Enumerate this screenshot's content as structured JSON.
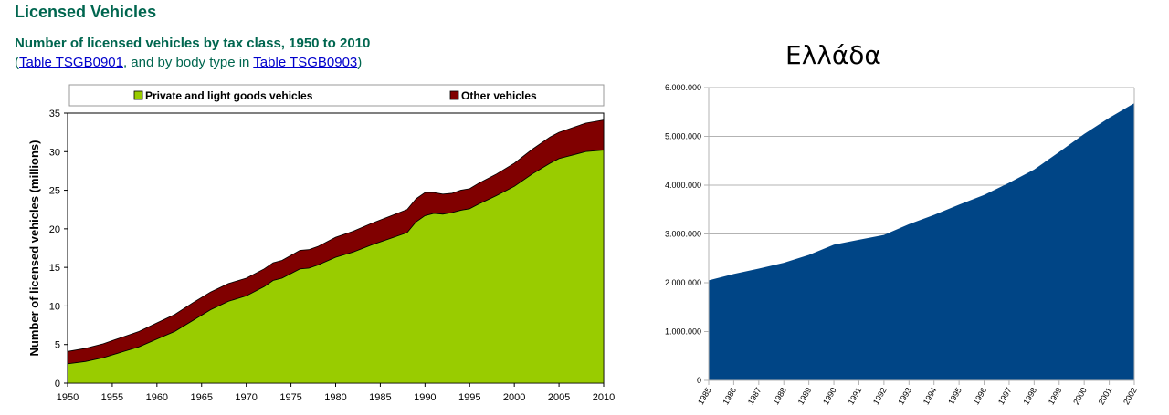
{
  "header": {
    "title": "Licensed Vehicles",
    "subtitle": "Number of licensed vehicles by tax class, 1950 to 2010",
    "line_open": "(",
    "link1": "Table TSGB0901",
    "line_mid": ", and by body type in ",
    "link2": "Table TSGB0903",
    "line_close": ")"
  },
  "chart_data": [
    {
      "type": "area",
      "stacked": true,
      "title": "Number of licensed vehicles by tax class, 1950 to 2010",
      "xlabel": "",
      "ylabel": "Number of licensed vehicles (millions)",
      "xlim": [
        1950,
        2010
      ],
      "ylim": [
        0,
        35
      ],
      "yticks": [
        0,
        5,
        10,
        15,
        20,
        25,
        30,
        35
      ],
      "xticks": [
        1950,
        1955,
        1960,
        1965,
        1970,
        1975,
        1980,
        1985,
        1990,
        1995,
        2000,
        2005,
        2010
      ],
      "legend_position": "top",
      "x": [
        1950,
        1952,
        1954,
        1956,
        1958,
        1960,
        1962,
        1964,
        1966,
        1968,
        1970,
        1972,
        1973,
        1974,
        1976,
        1977,
        1978,
        1980,
        1982,
        1984,
        1986,
        1988,
        1989,
        1990,
        1991,
        1992,
        1993,
        1994,
        1995,
        1996,
        1998,
        2000,
        2002,
        2004,
        2005,
        2006,
        2007,
        2008,
        2010
      ],
      "series": [
        {
          "name": "Private and light goods vehicles",
          "color": "#99cc00",
          "values": [
            2.5,
            2.8,
            3.3,
            4.0,
            4.7,
            5.7,
            6.7,
            8.1,
            9.5,
            10.6,
            11.3,
            12.5,
            13.3,
            13.6,
            14.8,
            14.9,
            15.3,
            16.3,
            17.0,
            17.9,
            18.7,
            19.5,
            20.9,
            21.7,
            22.0,
            21.9,
            22.1,
            22.4,
            22.6,
            23.2,
            24.3,
            25.5,
            27.1,
            28.5,
            29.1,
            29.4,
            29.7,
            30.0,
            30.2
          ]
        },
        {
          "name": "Other vehicles",
          "color": "#800000",
          "values": [
            1.6,
            1.7,
            1.8,
            1.9,
            2.0,
            2.1,
            2.2,
            2.3,
            2.3,
            2.3,
            2.3,
            2.3,
            2.3,
            2.3,
            2.4,
            2.4,
            2.4,
            2.6,
            2.7,
            2.8,
            2.9,
            3.0,
            3.0,
            3.0,
            2.7,
            2.6,
            2.5,
            2.6,
            2.6,
            2.7,
            2.8,
            3.0,
            3.2,
            3.4,
            3.4,
            3.5,
            3.6,
            3.7,
            3.9
          ]
        }
      ]
    },
    {
      "type": "area",
      "title": "Ελλάδα",
      "xlabel": "",
      "ylabel": "",
      "ylim": [
        0,
        6000000
      ],
      "yticks": [
        "0",
        "1.000.000",
        "2.000.000",
        "3.000.000",
        "4.000.000",
        "5.000.000",
        "6.000.000"
      ],
      "grid": true,
      "categories": [
        "1985",
        "1986",
        "1987",
        "1988",
        "1989",
        "1990",
        "1991",
        "1992",
        "1993",
        "1994",
        "1995",
        "1996",
        "1997",
        "1998",
        "1999",
        "2000",
        "2001",
        "2002"
      ],
      "series": [
        {
          "name": "Ελλάδα",
          "color": "#004586",
          "values": [
            2050000,
            2180000,
            2290000,
            2410000,
            2570000,
            2780000,
            2880000,
            2980000,
            3200000,
            3390000,
            3600000,
            3800000,
            4050000,
            4320000,
            4680000,
            5050000,
            5380000,
            5680000
          ]
        }
      ]
    }
  ]
}
